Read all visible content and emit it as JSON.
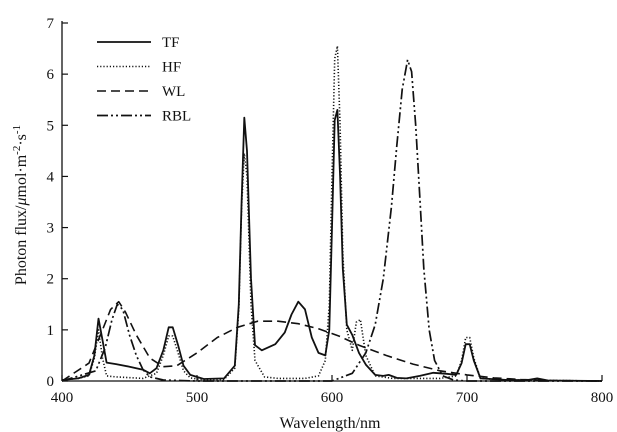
{
  "chart_data": {
    "type": "line",
    "title": "",
    "xlabel": "Wavelength/nm",
    "ylabel_parts": [
      "Photon flux/",
      "μ",
      "mol·m",
      "-2",
      "·s",
      "-1"
    ],
    "xlim": [
      400,
      800
    ],
    "ylim": [
      0,
      7
    ],
    "xticks": [
      400,
      500,
      600,
      700,
      800
    ],
    "yticks": [
      0,
      1,
      2,
      3,
      4,
      5,
      6,
      7
    ],
    "xtick_labels": [
      "400",
      "500",
      "600",
      "700",
      "800"
    ],
    "ytick_labels": [
      "0",
      "1",
      "2",
      "3",
      "4",
      "5",
      "6",
      "7"
    ],
    "grid": false,
    "legend_position": "top-left",
    "series": [
      {
        "name": "TF",
        "style": "solid",
        "points": [
          [
            400,
            0.02
          ],
          [
            412,
            0.05
          ],
          [
            420,
            0.12
          ],
          [
            424,
            0.5
          ],
          [
            427,
            1.22
          ],
          [
            430,
            0.8
          ],
          [
            433,
            0.36
          ],
          [
            440,
            0.33
          ],
          [
            450,
            0.28
          ],
          [
            460,
            0.22
          ],
          [
            465,
            0.15
          ],
          [
            470,
            0.25
          ],
          [
            475,
            0.6
          ],
          [
            479,
            1.05
          ],
          [
            482,
            1.05
          ],
          [
            486,
            0.7
          ],
          [
            490,
            0.3
          ],
          [
            495,
            0.12
          ],
          [
            505,
            0.04
          ],
          [
            520,
            0.05
          ],
          [
            528,
            0.3
          ],
          [
            531,
            1.5
          ],
          [
            533,
            3.5
          ],
          [
            535,
            5.15
          ],
          [
            537,
            4.5
          ],
          [
            540,
            2.0
          ],
          [
            543,
            0.7
          ],
          [
            548,
            0.6
          ],
          [
            558,
            0.72
          ],
          [
            565,
            0.95
          ],
          [
            570,
            1.3
          ],
          [
            575,
            1.55
          ],
          [
            580,
            1.4
          ],
          [
            585,
            0.85
          ],
          [
            590,
            0.55
          ],
          [
            595,
            0.5
          ],
          [
            598,
            1.0
          ],
          [
            600,
            3.0
          ],
          [
            602,
            5.1
          ],
          [
            604,
            5.3
          ],
          [
            606,
            4.0
          ],
          [
            608,
            2.2
          ],
          [
            611,
            1.1
          ],
          [
            615,
            0.9
          ],
          [
            620,
            0.55
          ],
          [
            625,
            0.32
          ],
          [
            632,
            0.12
          ],
          [
            638,
            0.1
          ],
          [
            642,
            0.12
          ],
          [
            648,
            0.06
          ],
          [
            655,
            0.05
          ],
          [
            665,
            0.1
          ],
          [
            675,
            0.16
          ],
          [
            685,
            0.14
          ],
          [
            692,
            0.12
          ],
          [
            696,
            0.35
          ],
          [
            699,
            0.72
          ],
          [
            702,
            0.72
          ],
          [
            705,
            0.4
          ],
          [
            710,
            0.05
          ],
          [
            730,
            0.02
          ],
          [
            745,
            0.02
          ],
          [
            752,
            0.05
          ],
          [
            760,
            0.01
          ],
          [
            800,
            0.0
          ]
        ]
      },
      {
        "name": "HF",
        "style": "dotted",
        "points": [
          [
            400,
            0.02
          ],
          [
            412,
            0.05
          ],
          [
            420,
            0.1
          ],
          [
            424,
            0.45
          ],
          [
            427,
            1.0
          ],
          [
            430,
            0.45
          ],
          [
            433,
            0.1
          ],
          [
            440,
            0.08
          ],
          [
            460,
            0.05
          ],
          [
            470,
            0.15
          ],
          [
            475,
            0.5
          ],
          [
            479,
            0.88
          ],
          [
            482,
            0.88
          ],
          [
            486,
            0.55
          ],
          [
            490,
            0.2
          ],
          [
            495,
            0.06
          ],
          [
            505,
            0.02
          ],
          [
            520,
            0.03
          ],
          [
            528,
            0.25
          ],
          [
            531,
            1.4
          ],
          [
            533,
            3.4
          ],
          [
            535,
            4.45
          ],
          [
            537,
            4.0
          ],
          [
            540,
            1.5
          ],
          [
            543,
            0.4
          ],
          [
            550,
            0.08
          ],
          [
            560,
            0.05
          ],
          [
            580,
            0.05
          ],
          [
            590,
            0.1
          ],
          [
            595,
            0.4
          ],
          [
            598,
            1.5
          ],
          [
            600,
            4.0
          ],
          [
            602,
            6.3
          ],
          [
            604,
            6.55
          ],
          [
            606,
            5.0
          ],
          [
            608,
            2.5
          ],
          [
            611,
            1.0
          ],
          [
            615,
            0.6
          ],
          [
            618,
            1.15
          ],
          [
            621,
            1.2
          ],
          [
            625,
            0.5
          ],
          [
            632,
            0.1
          ],
          [
            645,
            0.05
          ],
          [
            680,
            0.05
          ],
          [
            692,
            0.1
          ],
          [
            696,
            0.4
          ],
          [
            699,
            0.85
          ],
          [
            702,
            0.85
          ],
          [
            705,
            0.45
          ],
          [
            710,
            0.05
          ],
          [
            730,
            0.02
          ],
          [
            800,
            0.0
          ]
        ]
      },
      {
        "name": "WL",
        "style": "dashed",
        "points": [
          [
            400,
            0.0
          ],
          [
            420,
            0.35
          ],
          [
            430,
            1.0
          ],
          [
            436,
            1.4
          ],
          [
            442,
            1.55
          ],
          [
            447,
            1.35
          ],
          [
            455,
            0.9
          ],
          [
            465,
            0.45
          ],
          [
            475,
            0.28
          ],
          [
            485,
            0.3
          ],
          [
            500,
            0.55
          ],
          [
            515,
            0.85
          ],
          [
            530,
            1.05
          ],
          [
            545,
            1.17
          ],
          [
            560,
            1.17
          ],
          [
            575,
            1.12
          ],
          [
            590,
            1.02
          ],
          [
            605,
            0.88
          ],
          [
            620,
            0.7
          ],
          [
            640,
            0.5
          ],
          [
            660,
            0.33
          ],
          [
            680,
            0.2
          ],
          [
            700,
            0.12
          ],
          [
            720,
            0.06
          ],
          [
            740,
            0.03
          ],
          [
            760,
            0.01
          ],
          [
            800,
            0.0
          ]
        ]
      },
      {
        "name": "RBL",
        "style": "dash-dot-dot",
        "points": [
          [
            400,
            0.0
          ],
          [
            425,
            0.2
          ],
          [
            432,
            0.65
          ],
          [
            437,
            1.2
          ],
          [
            441,
            1.5
          ],
          [
            445,
            1.4
          ],
          [
            450,
            0.9
          ],
          [
            455,
            0.5
          ],
          [
            460,
            0.22
          ],
          [
            465,
            0.08
          ],
          [
            475,
            0.02
          ],
          [
            500,
            0.0
          ],
          [
            600,
            0.0
          ],
          [
            615,
            0.15
          ],
          [
            625,
            0.55
          ],
          [
            632,
            1.1
          ],
          [
            638,
            2.0
          ],
          [
            644,
            3.4
          ],
          [
            648,
            4.6
          ],
          [
            652,
            5.7
          ],
          [
            656,
            6.28
          ],
          [
            659,
            6.05
          ],
          [
            662,
            5.0
          ],
          [
            665,
            3.6
          ],
          [
            668,
            2.2
          ],
          [
            672,
            1.0
          ],
          [
            676,
            0.4
          ],
          [
            682,
            0.1
          ],
          [
            690,
            0.02
          ],
          [
            700,
            0.0
          ],
          [
            800,
            0.0
          ]
        ]
      }
    ]
  }
}
